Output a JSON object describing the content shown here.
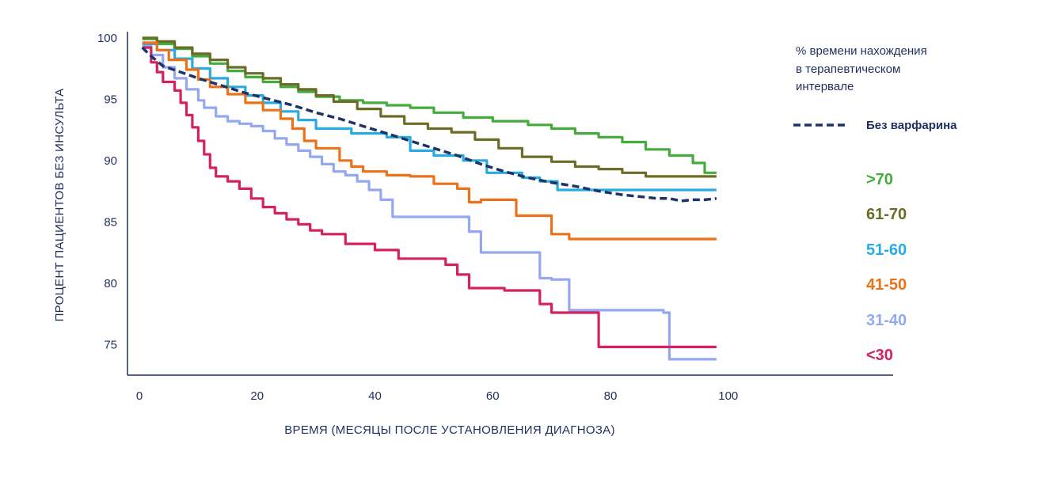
{
  "chart_data": {
    "type": "line",
    "title": "",
    "xlabel": "ВРЕМЯ (МЕСЯЦЫ ПОСЛЕ УСТАНОВЛЕНИЯ ДИАГНОЗА)",
    "ylabel": "ПРОЦЕНТ ПАЦИЕНТОВ БЕЗ ИНСУЛЬТА",
    "xlim": [
      0,
      128
    ],
    "ylim": [
      72.5,
      100.5
    ],
    "x_ticks": [
      0,
      20,
      40,
      60,
      80,
      100
    ],
    "y_ticks": [
      75,
      80,
      85,
      90,
      95,
      100
    ],
    "grid": false,
    "legend_title": "% времени нахождения в терапевтическом интервале",
    "legend_title_lines": [
      "% времени нахождения",
      "в терапевтическом",
      "интервале"
    ],
    "legend_position": "right",
    "series": [
      {
        "name": "Без варфарина",
        "color": "#1e3366",
        "dashed": true,
        "step": false,
        "points": [
          [
            0.5,
            99.2
          ],
          [
            2,
            98.5
          ],
          [
            4,
            97.7
          ],
          [
            7,
            97.2
          ],
          [
            10,
            96.7
          ],
          [
            14,
            96.1
          ],
          [
            18,
            95.5
          ],
          [
            22,
            95.0
          ],
          [
            26,
            94.5
          ],
          [
            30,
            93.9
          ],
          [
            34,
            93.4
          ],
          [
            38,
            92.8
          ],
          [
            42,
            92.2
          ],
          [
            46,
            91.6
          ],
          [
            50,
            91.0
          ],
          [
            54,
            90.4
          ],
          [
            58,
            89.7
          ],
          [
            62,
            89.1
          ],
          [
            66,
            88.6
          ],
          [
            70,
            88.2
          ],
          [
            74,
            87.9
          ],
          [
            78,
            87.5
          ],
          [
            82,
            87.2
          ],
          [
            86,
            87.0
          ],
          [
            88,
            86.9
          ],
          [
            90,
            86.9
          ],
          [
            92,
            86.7
          ],
          [
            94,
            86.8
          ],
          [
            96,
            86.8
          ],
          [
            98,
            86.9
          ]
        ]
      },
      {
        "name": ">70",
        "color": "#44ab3d",
        "dashed": false,
        "step": true,
        "points": [
          [
            0.5,
            99.9
          ],
          [
            3,
            99.5
          ],
          [
            6,
            99.1
          ],
          [
            9,
            98.5
          ],
          [
            12,
            97.9
          ],
          [
            15,
            97.3
          ],
          [
            18,
            96.8
          ],
          [
            21,
            96.4
          ],
          [
            24,
            96.0
          ],
          [
            27,
            95.6
          ],
          [
            30,
            95.2
          ],
          [
            34,
            94.9
          ],
          [
            38,
            94.7
          ],
          [
            42,
            94.5
          ],
          [
            46,
            94.3
          ],
          [
            50,
            93.9
          ],
          [
            55,
            93.5
          ],
          [
            60,
            93.2
          ],
          [
            66,
            92.9
          ],
          [
            70,
            92.6
          ],
          [
            74,
            92.2
          ],
          [
            78,
            91.9
          ],
          [
            82,
            91.5
          ],
          [
            86,
            90.9
          ],
          [
            90,
            90.4
          ],
          [
            94,
            89.8
          ],
          [
            96,
            89.0
          ],
          [
            98,
            89.0
          ]
        ]
      },
      {
        "name": "61-70",
        "color": "#6b6c25",
        "dashed": false,
        "step": true,
        "points": [
          [
            0.5,
            100.0
          ],
          [
            3,
            99.7
          ],
          [
            6,
            99.2
          ],
          [
            9,
            98.7
          ],
          [
            12,
            98.2
          ],
          [
            15,
            97.6
          ],
          [
            18,
            97.1
          ],
          [
            21,
            96.7
          ],
          [
            24,
            96.2
          ],
          [
            27,
            95.8
          ],
          [
            30,
            95.3
          ],
          [
            33,
            94.8
          ],
          [
            37,
            94.2
          ],
          [
            41,
            93.6
          ],
          [
            45,
            93.0
          ],
          [
            49,
            92.6
          ],
          [
            53,
            92.3
          ],
          [
            57,
            91.7
          ],
          [
            61,
            91.0
          ],
          [
            65,
            90.3
          ],
          [
            70,
            89.9
          ],
          [
            74,
            89.5
          ],
          [
            78,
            89.3
          ],
          [
            82,
            89.0
          ],
          [
            86,
            88.7
          ],
          [
            88,
            88.7
          ],
          [
            92,
            88.7
          ],
          [
            98,
            88.7
          ]
        ]
      },
      {
        "name": "51-60",
        "color": "#29abe2",
        "dashed": false,
        "step": true,
        "points": [
          [
            0.5,
            99.5
          ],
          [
            3,
            99.0
          ],
          [
            6,
            98.3
          ],
          [
            9,
            97.5
          ],
          [
            12,
            96.7
          ],
          [
            15,
            96.0
          ],
          [
            18,
            95.3
          ],
          [
            21,
            94.7
          ],
          [
            24,
            94.0
          ],
          [
            27,
            93.3
          ],
          [
            30,
            92.6
          ],
          [
            36,
            92.2
          ],
          [
            42,
            91.9
          ],
          [
            46,
            90.8
          ],
          [
            50,
            90.4
          ],
          [
            55,
            90.0
          ],
          [
            59,
            89.0
          ],
          [
            65,
            88.6
          ],
          [
            68,
            88.3
          ],
          [
            71,
            87.6
          ],
          [
            78,
            87.6
          ],
          [
            90,
            87.6
          ],
          [
            98,
            87.6
          ]
        ]
      },
      {
        "name": "41-50",
        "color": "#eb7219",
        "dashed": false,
        "step": true,
        "points": [
          [
            0.5,
            99.6
          ],
          [
            3,
            99.0
          ],
          [
            5,
            98.2
          ],
          [
            8,
            97.4
          ],
          [
            10,
            96.6
          ],
          [
            12,
            96.0
          ],
          [
            15,
            95.4
          ],
          [
            18,
            94.7
          ],
          [
            21,
            94.1
          ],
          [
            24,
            93.4
          ],
          [
            26,
            92.6
          ],
          [
            28,
            91.6
          ],
          [
            30,
            91.0
          ],
          [
            34,
            90.0
          ],
          [
            36,
            89.5
          ],
          [
            38,
            89.1
          ],
          [
            42,
            88.8
          ],
          [
            46,
            88.7
          ],
          [
            50,
            88.1
          ],
          [
            54,
            87.7
          ],
          [
            56,
            86.6
          ],
          [
            58,
            86.8
          ],
          [
            64,
            85.5
          ],
          [
            70,
            84.0
          ],
          [
            73,
            83.6
          ],
          [
            85,
            83.6
          ],
          [
            98,
            83.6
          ]
        ]
      },
      {
        "name": "31-40",
        "color": "#93a8f0",
        "dashed": false,
        "step": true,
        "points": [
          [
            0.5,
            99.3
          ],
          [
            2,
            98.6
          ],
          [
            4,
            97.6
          ],
          [
            6,
            96.7
          ],
          [
            8,
            95.8
          ],
          [
            10,
            94.9
          ],
          [
            11,
            94.3
          ],
          [
            13,
            93.6
          ],
          [
            15,
            93.2
          ],
          [
            17,
            93.0
          ],
          [
            19,
            92.8
          ],
          [
            21,
            92.4
          ],
          [
            23,
            91.8
          ],
          [
            25,
            91.3
          ],
          [
            27,
            90.8
          ],
          [
            29,
            90.3
          ],
          [
            31,
            89.7
          ],
          [
            33,
            89.1
          ],
          [
            35,
            88.8
          ],
          [
            37,
            88.3
          ],
          [
            39,
            87.6
          ],
          [
            41,
            86.8
          ],
          [
            43,
            85.4
          ],
          [
            48,
            85.4
          ],
          [
            56,
            84.2
          ],
          [
            58,
            82.5
          ],
          [
            64,
            82.5
          ],
          [
            68,
            80.4
          ],
          [
            70,
            80.3
          ],
          [
            73,
            77.8
          ],
          [
            80,
            77.8
          ],
          [
            89,
            77.6
          ],
          [
            90,
            73.8
          ],
          [
            98,
            73.8
          ]
        ]
      },
      {
        "name": "<30",
        "color": "#d5215d",
        "dashed": false,
        "step": true,
        "points": [
          [
            0.5,
            99.2
          ],
          [
            2,
            98.0
          ],
          [
            3,
            97.2
          ],
          [
            4,
            96.4
          ],
          [
            6,
            95.7
          ],
          [
            7,
            94.7
          ],
          [
            8,
            93.7
          ],
          [
            9,
            92.7
          ],
          [
            10,
            91.6
          ],
          [
            11,
            90.5
          ],
          [
            12,
            89.4
          ],
          [
            13,
            88.7
          ],
          [
            15,
            88.3
          ],
          [
            17,
            87.7
          ],
          [
            19,
            86.9
          ],
          [
            21,
            86.2
          ],
          [
            23,
            85.7
          ],
          [
            25,
            85.2
          ],
          [
            27,
            84.8
          ],
          [
            29,
            84.3
          ],
          [
            31,
            84.0
          ],
          [
            35,
            83.2
          ],
          [
            40,
            82.7
          ],
          [
            44,
            82.0
          ],
          [
            52,
            81.5
          ],
          [
            54,
            80.7
          ],
          [
            56,
            79.6
          ],
          [
            62,
            79.4
          ],
          [
            68,
            78.3
          ],
          [
            70,
            77.6
          ],
          [
            78,
            74.8
          ],
          [
            98,
            74.8
          ]
        ]
      }
    ]
  }
}
